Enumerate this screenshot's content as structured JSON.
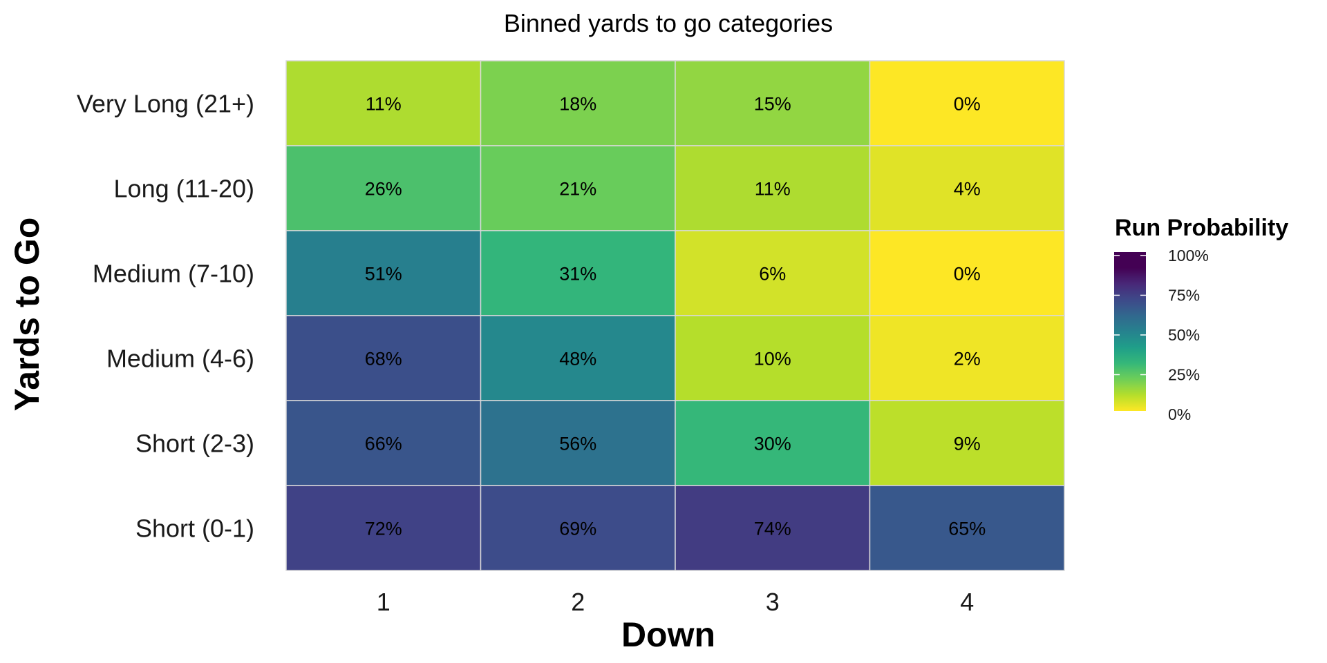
{
  "chart_data": {
    "type": "heatmap",
    "title": "Binned yards to go categories",
    "xlabel": "Down",
    "ylabel": "Yards to Go",
    "x_categories": [
      "1",
      "2",
      "3",
      "4"
    ],
    "y_categories_top_to_bottom": [
      "Very Long (21+)",
      "Long (11-20)",
      "Medium (7-10)",
      "Medium (4-6)",
      "Short (2-3)",
      "Short (0-1)"
    ],
    "values_percent": [
      [
        11,
        18,
        15,
        0
      ],
      [
        26,
        21,
        11,
        4
      ],
      [
        51,
        31,
        6,
        0
      ],
      [
        68,
        48,
        10,
        2
      ],
      [
        66,
        56,
        30,
        9
      ],
      [
        72,
        69,
        74,
        65
      ]
    ],
    "cell_labels": [
      [
        "11%",
        "18%",
        "15%",
        "0%"
      ],
      [
        "26%",
        "21%",
        "11%",
        "4%"
      ],
      [
        "51%",
        "31%",
        "6%",
        "0%"
      ],
      [
        "68%",
        "48%",
        "10%",
        "2%"
      ],
      [
        "66%",
        "56%",
        "30%",
        "9%"
      ],
      [
        "72%",
        "69%",
        "74%",
        "65%"
      ]
    ],
    "legend": {
      "title": "Run Probability",
      "ticks": [
        "100%",
        "75%",
        "50%",
        "25%",
        "0%"
      ],
      "placement": "right"
    },
    "colorscale": "viridis (reversed: 0% = yellow, 100% = purple)",
    "value_range": [
      0,
      100
    ],
    "grid": false
  }
}
